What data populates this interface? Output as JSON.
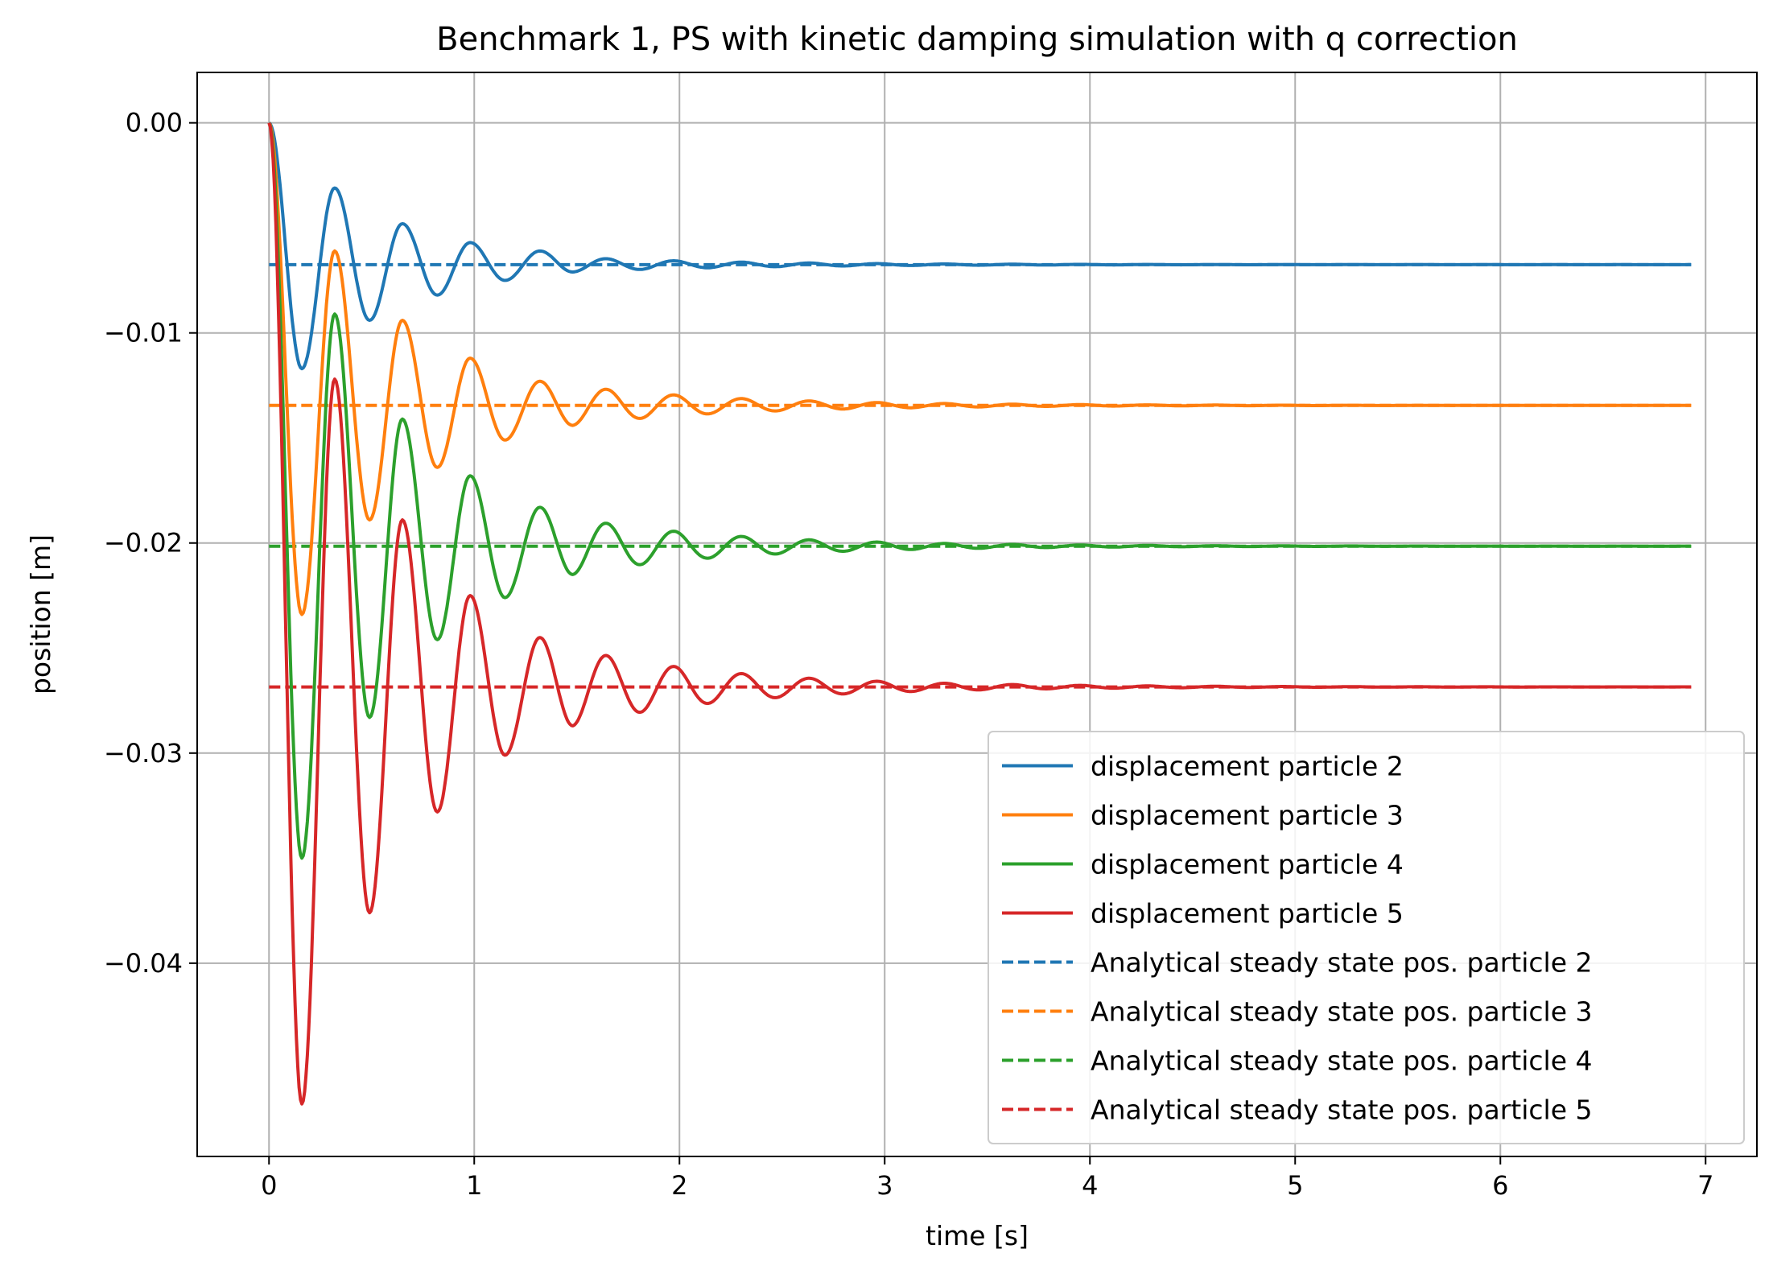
{
  "chart_data": {
    "type": "line",
    "title": "Benchmark 1, PS with kinetic damping simulation with q correction",
    "xlabel": "time [s]",
    "ylabel": "position [m]",
    "xlim": [
      -0.35,
      7.25
    ],
    "ylim": [
      -0.0492,
      0.0024
    ],
    "xticks": [
      0,
      1,
      2,
      3,
      4,
      5,
      6,
      7
    ],
    "xtick_labels": [
      "0",
      "1",
      "2",
      "3",
      "4",
      "5",
      "6",
      "7"
    ],
    "yticks": [
      0.0,
      -0.01,
      -0.02,
      -0.03,
      -0.04
    ],
    "ytick_labels": [
      "0.00",
      "−0.01",
      "−0.02",
      "−0.03",
      "−0.04"
    ],
    "grid": true,
    "legend_position": "lower right",
    "x_end": 6.93,
    "series": [
      {
        "name": "displacement particle 2",
        "style": "solid",
        "color": "#1f77b4",
        "steady_state": -0.00675,
        "damped_oscillation": {
          "period_s": 0.33,
          "decay_per_s": 1.3
        },
        "peaks": [
          {
            "t": 0.0,
            "y": 0.0
          },
          {
            "t": 0.16,
            "y": -0.0117
          },
          {
            "t": 0.32,
            "y": -0.0031
          },
          {
            "t": 0.49,
            "y": -0.0094
          },
          {
            "t": 0.65,
            "y": -0.0048
          },
          {
            "t": 0.82,
            "y": -0.0082
          },
          {
            "t": 0.98,
            "y": -0.0057
          },
          {
            "t": 1.15,
            "y": -0.0075
          },
          {
            "t": 1.32,
            "y": -0.0061
          },
          {
            "t": 1.48,
            "y": -0.0071
          }
        ]
      },
      {
        "name": "displacement particle 3",
        "style": "solid",
        "color": "#ff7f0e",
        "steady_state": -0.01345,
        "damped_oscillation": {
          "period_s": 0.33,
          "decay_per_s": 1.3
        },
        "peaks": [
          {
            "t": 0.0,
            "y": 0.0
          },
          {
            "t": 0.16,
            "y": -0.0234
          },
          {
            "t": 0.32,
            "y": -0.0061
          },
          {
            "t": 0.49,
            "y": -0.0189
          },
          {
            "t": 0.65,
            "y": -0.0094
          },
          {
            "t": 0.82,
            "y": -0.0164
          },
          {
            "t": 0.98,
            "y": -0.0112
          },
          {
            "t": 1.15,
            "y": -0.0151
          },
          {
            "t": 1.32,
            "y": -0.0123
          },
          {
            "t": 1.48,
            "y": -0.0144
          }
        ]
      },
      {
        "name": "displacement particle 4",
        "style": "solid",
        "color": "#2ca02c",
        "steady_state": -0.02015,
        "damped_oscillation": {
          "period_s": 0.33,
          "decay_per_s": 1.3
        },
        "peaks": [
          {
            "t": 0.0,
            "y": 0.0
          },
          {
            "t": 0.16,
            "y": -0.035
          },
          {
            "t": 0.32,
            "y": -0.0091
          },
          {
            "t": 0.49,
            "y": -0.0283
          },
          {
            "t": 0.65,
            "y": -0.0141
          },
          {
            "t": 0.82,
            "y": -0.0246
          },
          {
            "t": 0.98,
            "y": -0.0168
          },
          {
            "t": 1.15,
            "y": -0.0226
          },
          {
            "t": 1.32,
            "y": -0.0183
          },
          {
            "t": 1.48,
            "y": -0.0215
          }
        ]
      },
      {
        "name": "displacement particle 5",
        "style": "solid",
        "color": "#d62728",
        "steady_state": -0.02685,
        "damped_oscillation": {
          "period_s": 0.33,
          "decay_per_s": 1.3
        },
        "peaks": [
          {
            "t": 0.0,
            "y": 0.0
          },
          {
            "t": 0.16,
            "y": -0.0467
          },
          {
            "t": 0.32,
            "y": -0.0122
          },
          {
            "t": 0.49,
            "y": -0.0376
          },
          {
            "t": 0.65,
            "y": -0.0189
          },
          {
            "t": 0.82,
            "y": -0.0328
          },
          {
            "t": 0.98,
            "y": -0.0225
          },
          {
            "t": 1.15,
            "y": -0.0301
          },
          {
            "t": 1.32,
            "y": -0.0245
          },
          {
            "t": 1.48,
            "y": -0.0287
          }
        ]
      },
      {
        "name": "Analytical steady state pos. particle 2",
        "style": "dashed",
        "color": "#1f77b4",
        "x": [
          0.0,
          6.93
        ],
        "y": [
          -0.00675,
          -0.00675
        ]
      },
      {
        "name": "Analytical steady state pos. particle 3",
        "style": "dashed",
        "color": "#ff7f0e",
        "x": [
          0.0,
          6.93
        ],
        "y": [
          -0.01345,
          -0.01345
        ]
      },
      {
        "name": "Analytical steady state pos. particle 4",
        "style": "dashed",
        "color": "#2ca02c",
        "x": [
          0.0,
          6.93
        ],
        "y": [
          -0.02015,
          -0.02015
        ]
      },
      {
        "name": "Analytical steady state pos. particle 5",
        "style": "dashed",
        "color": "#d62728",
        "x": [
          0.0,
          6.93
        ],
        "y": [
          -0.02685,
          -0.02685
        ]
      }
    ]
  }
}
